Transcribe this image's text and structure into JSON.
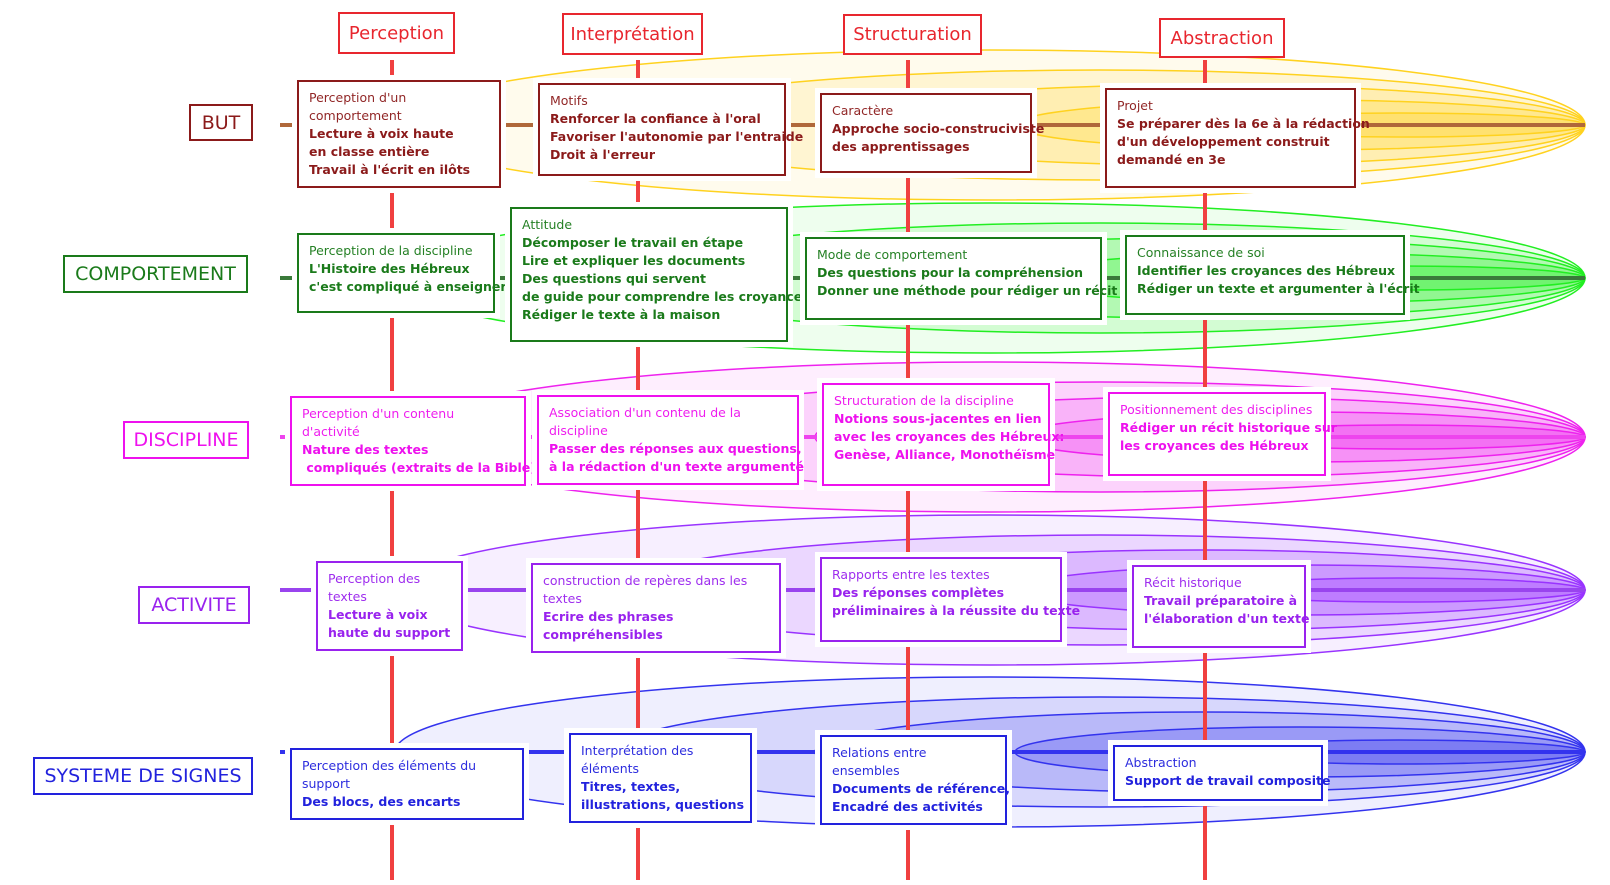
{
  "columns": [
    "Perception",
    "Interprétation",
    "Structuration",
    "Abstraction"
  ],
  "rows": [
    {
      "label": "BUT",
      "color": "#8b1a1a",
      "line_color": "#b0683a",
      "fill": "#ffd21f",
      "cells": [
        {
          "title": "Perception d'un comportement",
          "lines": [
            "Lecture à voix haute",
            "en classe entière",
            "Travail à l'écrit en ilôts"
          ]
        },
        {
          "title": "Motifs",
          "lines": [
            "Renforcer la confiance à l'oral",
            "Favoriser l'autonomie par l'entraide",
            "Droit à l'erreur"
          ]
        },
        {
          "title": "Caractère",
          "lines": [
            "Approche socio-construciviste",
            "des apprentissages"
          ]
        },
        {
          "title": "Projet",
          "lines": [
            "Se préparer dès la 6e à la rédaction",
            "d'un développement construit",
            "demandé en 3e"
          ]
        }
      ]
    },
    {
      "label": "COMPORTEMENT",
      "color": "#1a7a1a",
      "line_color": "#3a7a3a",
      "fill": "#22ee22",
      "cells": [
        {
          "title": "Perception de la discipline",
          "lines": [
            "L'Histoire des Hébreux",
            "c'est compliqué à enseigner"
          ]
        },
        {
          "title": "Attitude",
          "lines": [
            "Décomposer le travail en étape",
            "Lire et expliquer les documents",
            "Des questions qui servent",
            "de guide pour comprendre les croyances",
            "Rédiger le texte à la maison"
          ]
        },
        {
          "title": "Mode de comportement",
          "lines": [
            "Des questions pour la compréhension",
            "Donner une méthode pour rédiger un récit"
          ]
        },
        {
          "title": "Connaissance de soi",
          "lines": [
            "Identifier les croyances des Hébreux",
            "Rédiger un texte et argumenter à l'écrit"
          ]
        }
      ]
    },
    {
      "label": "DISCIPLINE",
      "color": "#ee11ee",
      "line_color": "#ee44ee",
      "fill": "#ee22ee",
      "cells": [
        {
          "title": "Perception d'un contenu d'activité",
          "lines": [
            "Nature des textes",
            " compliqués (extraits de la Bible)"
          ]
        },
        {
          "title": "Association d'un contenu de la discipline",
          "lines": [
            "Passer des réponses aux questions,",
            "à la rédaction d'un texte argumenté"
          ]
        },
        {
          "title": "Structuration de la discipline",
          "lines": [
            "Notions sous-jacentes en lien",
            "avec les croyances des Hébreux:",
            "Genèse, Alliance, Monothéïsme"
          ]
        },
        {
          "title": "Positionnement des disciplines",
          "lines": [
            "Rédiger un récit historique sur",
            "les croyances des Hébreux"
          ]
        }
      ]
    },
    {
      "label": "ACTIVITE",
      "color": "#9922ee",
      "line_color": "#9944ee",
      "fill": "#9933ff",
      "cells": [
        {
          "title": "Perception des textes",
          "lines": [
            "Lecture à voix",
            "haute du support"
          ]
        },
        {
          "title": "construction de repères dans les textes",
          "lines": [
            "Ecrire des phrases",
            "compréhensibles"
          ]
        },
        {
          "title": "Rapports entre les textes",
          "lines": [
            "Des réponses complètes",
            "préliminaires à la réussite du texte"
          ]
        },
        {
          "title": "Récit historique",
          "lines": [
            "Travail préparatoire à",
            "l'élaboration d'un texte"
          ]
        }
      ]
    },
    {
      "label": "SYSTEME DE SIGNES",
      "color": "#2222dd",
      "line_color": "#3333ee",
      "fill": "#3333ee",
      "cells": [
        {
          "title": "Perception des éléments du support",
          "lines": [
            "Des blocs, des encarts"
          ]
        },
        {
          "title": "Interprétation des éléments",
          "lines": [
            "Titres, textes,",
            "illustrations, questions"
          ]
        },
        {
          "title": "Relations entre ensembles",
          "lines": [
            "Documents de référence,",
            "Encadré des activités"
          ]
        },
        {
          "title": "Abstraction",
          "lines": [
            "Support de travail composite"
          ]
        }
      ]
    }
  ],
  "colors": {
    "column_header": "#e8262e",
    "column_line": "#f04040"
  }
}
